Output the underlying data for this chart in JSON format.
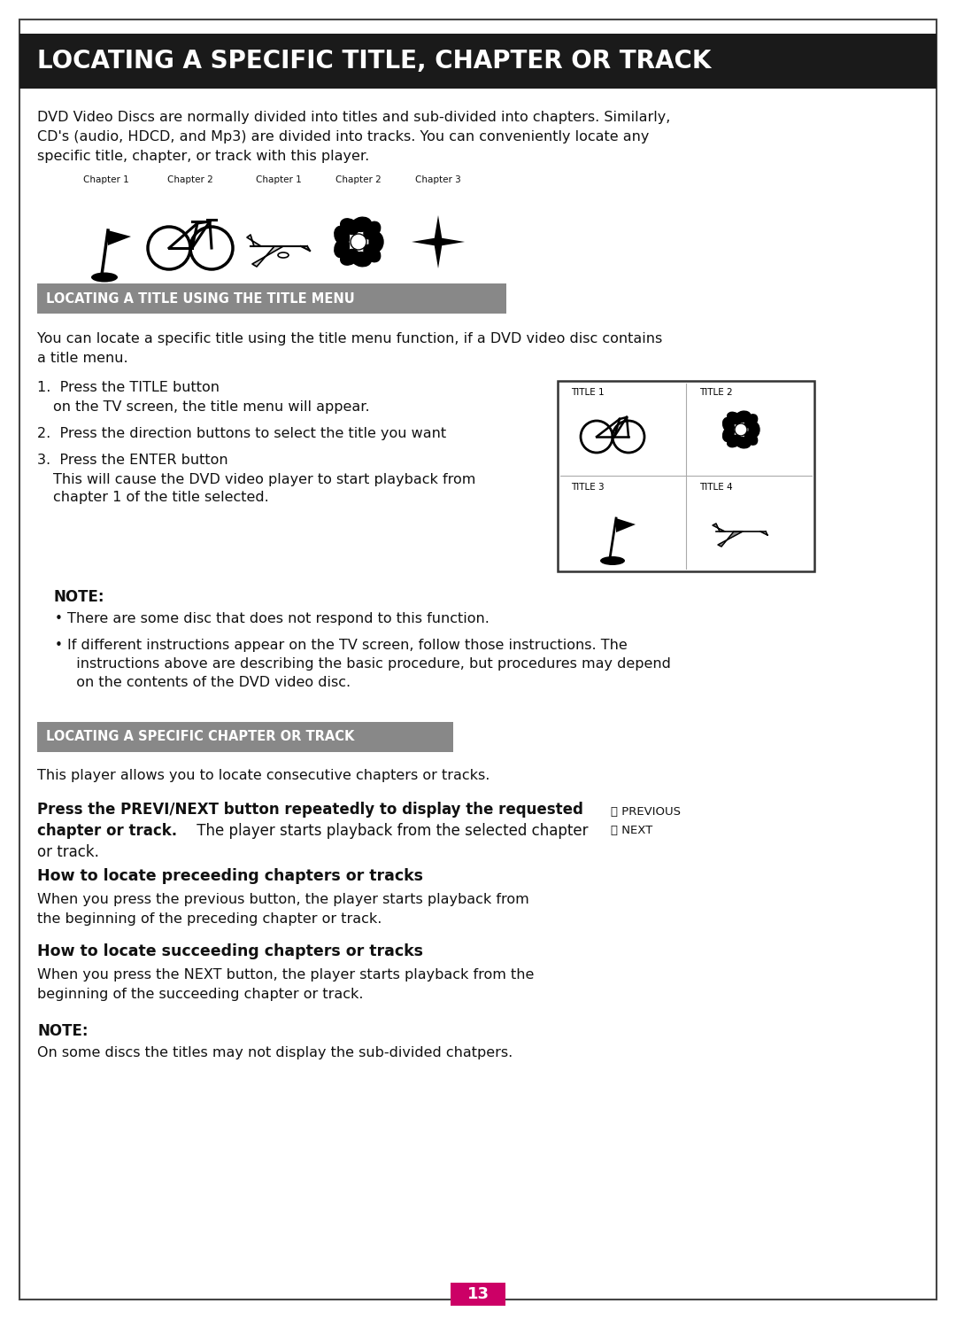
{
  "title": "LOCATING A SPECIFIC TITLE, CHAPTER OR TRACK",
  "title_bg": "#1a1a1a",
  "title_color": "#ffffff",
  "section1_title": "LOCATING A TITLE USING THE TITLE MENU",
  "section2_title": "LOCATING A SPECIFIC CHAPTER OR TRACK",
  "section_bg": "#888888",
  "page_bg": "#ffffff",
  "page_number": "13",
  "page_num_bg": "#cc0066",
  "body_color": "#111111",
  "intro_text": "DVD Video Discs are normally divided into titles and sub-divided into chapters. Similarly,\nCD's (audio, HDCD, and Mp3) are divided into tracks. You can conveniently locate any\nspecific title, chapter, or track with this player.",
  "title_menu_text": "You can locate a specific title using the title menu function, if a DVD video disc contains\na title menu.",
  "chapter_labels": [
    "Chapter 1",
    "Chapter 2",
    "Chapter 1",
    "Chapter 2",
    "Chapter 3"
  ]
}
